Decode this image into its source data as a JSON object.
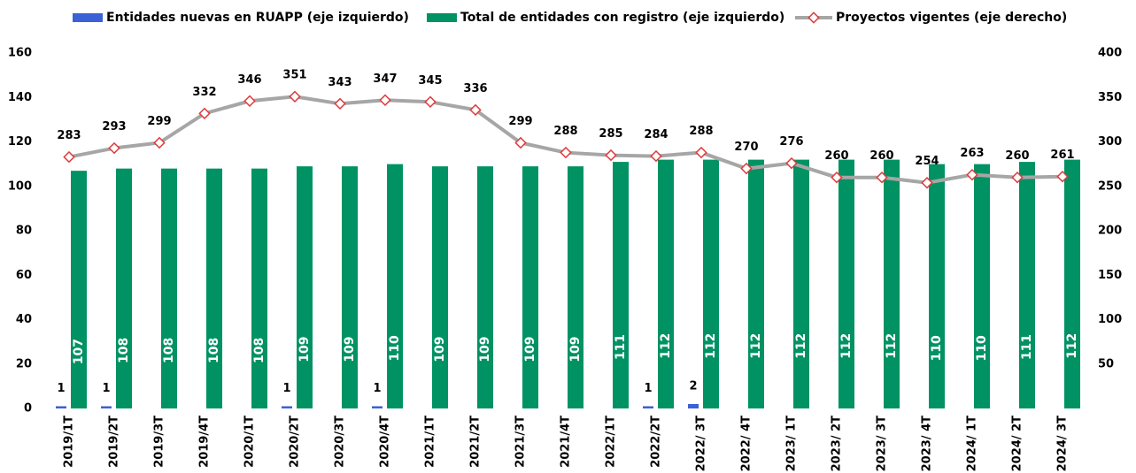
{
  "chart_data": {
    "type": "bar_line",
    "categories": [
      "2019/1T",
      "2019/2T",
      "2019/3T",
      "2019/4T",
      "2020/1T",
      "2020/2T",
      "2020/3T",
      "2020/4T",
      "2021/1T",
      "2021/2T",
      "2021/3T",
      "2021/4T",
      "2022/1T",
      "2022/2T",
      "2022/ 3T",
      "2022/ 4T",
      "2023/ 1T",
      "2023/ 2T",
      "2023/ 3T",
      "2023/ 4T",
      "2024/ 1T",
      "2024/ 2T",
      "2024/ 3T"
    ],
    "series": [
      {
        "name": "Entidades nuevas en RUAPP (eje izquierdo)",
        "color": "#3a62d6",
        "kind": "bar",
        "values": [
          1,
          1,
          0,
          0,
          0,
          1,
          0,
          1,
          0,
          0,
          0,
          0,
          0,
          1,
          2,
          0,
          0,
          0,
          0,
          0,
          0,
          0,
          0
        ]
      },
      {
        "name": "Total de entidades con registro (eje izquierdo)",
        "color": "#009263",
        "kind": "bar",
        "values": [
          107,
          108,
          108,
          108,
          108,
          109,
          109,
          110,
          109,
          109,
          109,
          109,
          111,
          112,
          112,
          112,
          112,
          112,
          112,
          110,
          110,
          111,
          112
        ]
      },
      {
        "name": "Proyectos vigentes (eje derecho)",
        "color": "#a6a6a6",
        "marker_color": "#e03a3a",
        "kind": "line",
        "axis": "y2",
        "values": [
          283,
          293,
          299,
          332,
          346,
          351,
          343,
          347,
          345,
          336,
          299,
          288,
          285,
          284,
          288,
          270,
          276,
          260,
          260,
          254,
          263,
          260,
          261
        ]
      }
    ],
    "ylim": [
      0,
      160
    ],
    "yticks": [
      0,
      20,
      40,
      60,
      80,
      100,
      120,
      140,
      160
    ],
    "y2lim": [
      0,
      400
    ],
    "y2ticks": [
      50,
      100,
      150,
      200,
      250,
      300,
      350,
      400
    ],
    "legend": "top"
  }
}
